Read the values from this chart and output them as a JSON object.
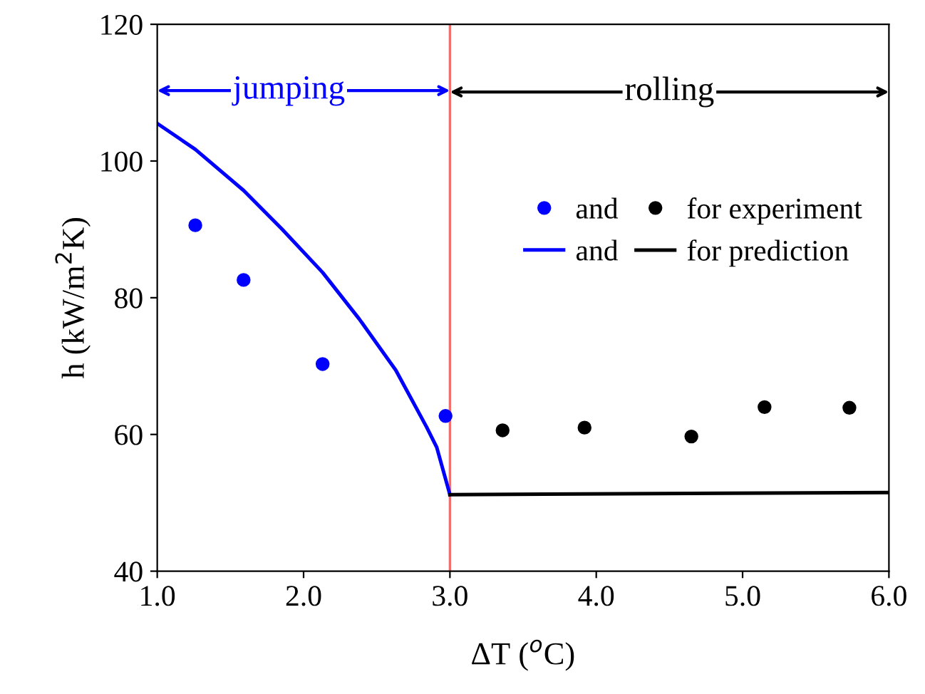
{
  "chart_data": {
    "type": "scatter",
    "xlabel": "ΔT ($^{o}$C)",
    "ylabel": "h (kW/m$^{2}$K)",
    "xlim": [
      1,
      6
    ],
    "ylim": [
      40,
      120
    ],
    "xticks": [
      {
        "value": 1,
        "label": "1.0"
      },
      {
        "value": 2,
        "label": "2.0"
      },
      {
        "value": 3,
        "label": "3.0"
      },
      {
        "value": 4,
        "label": "4.0"
      },
      {
        "value": 5,
        "label": "5.0"
      },
      {
        "value": 6,
        "label": "6.0"
      }
    ],
    "yticks": [
      40,
      60,
      80,
      100,
      120
    ],
    "grid": false,
    "legend": "right",
    "series": [
      {
        "name": "and",
        "color": "#0000ff",
        "marker": "circle",
        "x": [
          1.26,
          1.59,
          2.13,
          2.97
        ],
        "values": [
          90.6,
          82.6,
          70.3,
          62.7
        ]
      },
      {
        "name": "and",
        "type": "line",
        "color": "#0000ff",
        "x": [
          1.0,
          1.26,
          1.59,
          1.85,
          2.13,
          2.38,
          2.63,
          2.84,
          2.91,
          3.0
        ],
        "values": [
          105.5,
          101.7,
          95.7,
          90.1,
          83.7,
          76.9,
          69.4,
          61.1,
          58.1,
          51.2
        ]
      },
      {
        "name": "for experiment",
        "color": "#000000",
        "marker": "circle",
        "x": [
          3.36,
          3.92,
          4.65,
          5.15,
          5.73
        ],
        "values": [
          60.6,
          61.0,
          59.7,
          64.0,
          63.9
        ]
      },
      {
        "name": "for prediction",
        "type": "line",
        "color": "#000000",
        "x": [
          3.0,
          6.0
        ],
        "values": [
          51.2,
          51.5
        ]
      }
    ],
    "ref_lines": [
      {
        "axis": "x",
        "value": 3.0,
        "label": null,
        "color": "#f07070"
      }
    ],
    "annotations": [
      {
        "text": "jumping",
        "x": 3.0,
        "y": 110.3
      },
      {
        "text": "rolling",
        "x": 3.0,
        "y": 110.1
      }
    ]
  }
}
